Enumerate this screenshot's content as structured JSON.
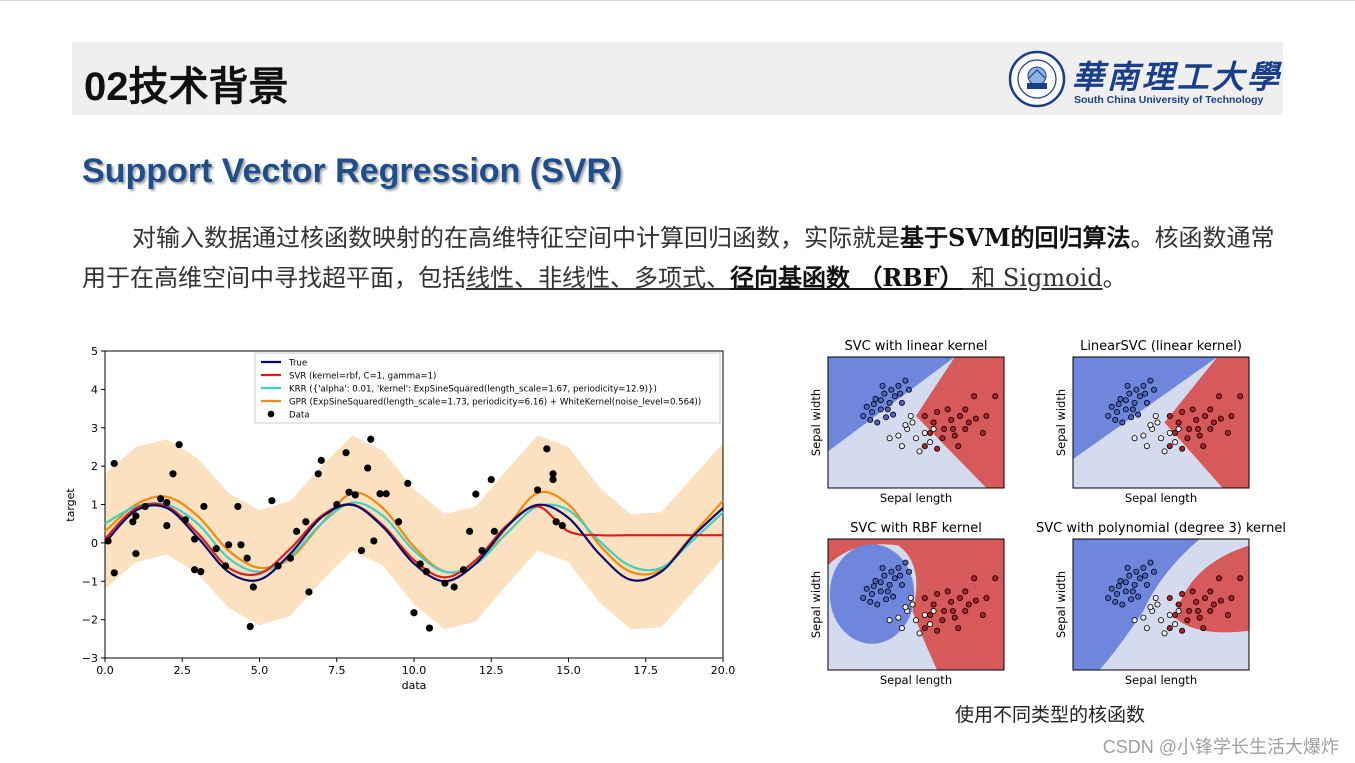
{
  "header": {
    "section_title": "02技术背景",
    "logo_cn": "華南理工大學",
    "logo_en": "South China University of Technology"
  },
  "svr_title": "Support Vector Regression (SVR)",
  "paragraph": {
    "part1": "对输入数据通过核函数映射的在高维特征空间中计算回归函数，实际就是",
    "bold1": "基于SVM的回归算法",
    "part2": "。核函数通常用于在高维空间中寻找超平面，包括",
    "ul1": "线性、非线性、多项式、",
    "ul_bold": "径向基函数 （RBF）",
    "ul2": " 和 Sigmoid",
    "end": "。"
  },
  "caption": "使用不同类型的核函数",
  "watermark": "CSDN @小锋学长生活大爆炸",
  "colors": {
    "accent": "#1f4e8c",
    "band": "#efefef",
    "true_line": "#0b0b6b",
    "svr": "#d62020",
    "krr": "#40d0c0",
    "gpr": "#f08a10",
    "band_fill": "#fbd9b0"
  },
  "chart_data": [
    {
      "type": "line",
      "xlabel": "data",
      "ylabel": "target",
      "xlim": [
        0.0,
        20.0
      ],
      "ylim": [
        -3,
        5
      ],
      "x_ticks": [
        "0.0",
        "2.5",
        "5.0",
        "7.5",
        "10.0",
        "12.5",
        "15.0",
        "17.5",
        "20.0"
      ],
      "y_ticks": [
        "−3",
        "−2",
        "−1",
        "0",
        "1",
        "2",
        "3",
        "4",
        "5"
      ],
      "legend": [
        "True",
        "SVR (kernel=rbf, C=1, gamma=1)",
        "KRR ({'alpha': 0.01, 'kernel': ExpSineSquared(length_scale=1.67, periodicity=12.9)})",
        "GPR (ExpSineSquared(length_scale=1.73, periodicity=6.16) + WhiteKernel(noise_level=0.564))",
        "Data"
      ],
      "legend_position": "top-right",
      "data_points": [
        [
          0.1,
          0.05
        ],
        [
          0.3,
          -0.78
        ],
        [
          0.3,
          2.07
        ],
        [
          0.9,
          0.55
        ],
        [
          1.0,
          0.7
        ],
        [
          1.0,
          -0.28
        ],
        [
          1.3,
          0.95
        ],
        [
          1.8,
          1.15
        ],
        [
          2.0,
          1.05
        ],
        [
          2.0,
          0.45
        ],
        [
          2.2,
          1.8
        ],
        [
          2.4,
          2.56
        ],
        [
          2.6,
          0.6
        ],
        [
          2.9,
          0.1
        ],
        [
          2.9,
          -0.7
        ],
        [
          3.1,
          -0.75
        ],
        [
          3.2,
          0.95
        ],
        [
          3.6,
          -0.15
        ],
        [
          3.9,
          -0.6
        ],
        [
          4.0,
          -0.05
        ],
        [
          4.3,
          0.95
        ],
        [
          4.4,
          -0.05
        ],
        [
          4.6,
          -0.4
        ],
        [
          4.7,
          -2.18
        ],
        [
          4.8,
          -1.15
        ],
        [
          5.4,
          1.1
        ],
        [
          5.6,
          -0.6
        ],
        [
          6.0,
          -0.4
        ],
        [
          6.2,
          0.3
        ],
        [
          6.5,
          0.55
        ],
        [
          6.6,
          -1.28
        ],
        [
          6.9,
          1.8
        ],
        [
          7.0,
          2.15
        ],
        [
          7.5,
          1.0
        ],
        [
          7.8,
          2.35
        ],
        [
          7.9,
          1.32
        ],
        [
          8.1,
          1.25
        ],
        [
          8.3,
          -0.2
        ],
        [
          8.5,
          1.95
        ],
        [
          8.6,
          2.7
        ],
        [
          8.7,
          0.05
        ],
        [
          8.9,
          1.28
        ],
        [
          9.1,
          1.28
        ],
        [
          9.5,
          0.55
        ],
        [
          9.8,
          1.55
        ],
        [
          10.0,
          -1.82
        ],
        [
          10.2,
          -0.55
        ],
        [
          10.4,
          -0.75
        ],
        [
          10.5,
          -2.22
        ],
        [
          11.0,
          -1.05
        ],
        [
          11.3,
          -1.15
        ],
        [
          11.6,
          -0.7
        ],
        [
          11.8,
          0.3
        ],
        [
          12.0,
          1.27
        ],
        [
          12.2,
          -0.2
        ],
        [
          12.5,
          1.65
        ],
        [
          12.6,
          0.3
        ],
        [
          14.0,
          1.38
        ],
        [
          14.3,
          2.45
        ],
        [
          14.5,
          1.8
        ],
        [
          14.5,
          1.65
        ],
        [
          14.6,
          0.55
        ],
        [
          14.8,
          0.45
        ]
      ],
      "true_curve": [
        [
          0,
          0.0
        ],
        [
          1,
          0.84
        ],
        [
          2,
          0.91
        ],
        [
          3,
          0.14
        ],
        [
          4,
          -0.76
        ],
        [
          5,
          -0.96
        ],
        [
          6,
          -0.28
        ],
        [
          7,
          0.66
        ],
        [
          8,
          0.99
        ],
        [
          9,
          0.41
        ],
        [
          10,
          -0.54
        ],
        [
          11,
          -1.0
        ],
        [
          12,
          -0.54
        ],
        [
          13,
          0.42
        ],
        [
          14,
          0.99
        ],
        [
          15,
          0.65
        ],
        [
          16,
          -0.29
        ],
        [
          17,
          -0.96
        ],
        [
          18,
          -0.75
        ],
        [
          19,
          0.15
        ],
        [
          20,
          0.91
        ]
      ],
      "svr_curve": [
        [
          0,
          0.1
        ],
        [
          1,
          0.9
        ],
        [
          2,
          0.95
        ],
        [
          3,
          0.25
        ],
        [
          4,
          -0.65
        ],
        [
          5,
          -0.8
        ],
        [
          6,
          -0.15
        ],
        [
          7,
          0.7
        ],
        [
          8,
          1.0
        ],
        [
          9,
          0.45
        ],
        [
          10,
          -0.45
        ],
        [
          11,
          -0.9
        ],
        [
          12,
          -0.45
        ],
        [
          13,
          0.45
        ],
        [
          14,
          0.95
        ],
        [
          15,
          0.3
        ],
        [
          16,
          0.2
        ],
        [
          17,
          0.2
        ],
        [
          18,
          0.2
        ],
        [
          19,
          0.2
        ],
        [
          20,
          0.2
        ]
      ],
      "krr_curve": [
        [
          0,
          0.5
        ],
        [
          1,
          0.95
        ],
        [
          2,
          1.0
        ],
        [
          3,
          0.5
        ],
        [
          4,
          -0.4
        ],
        [
          5,
          -0.75
        ],
        [
          6,
          -0.35
        ],
        [
          7,
          0.5
        ],
        [
          8,
          1.05
        ],
        [
          9,
          0.7
        ],
        [
          10,
          -0.2
        ],
        [
          11,
          -0.75
        ],
        [
          12,
          -0.55
        ],
        [
          13,
          0.25
        ],
        [
          14,
          0.95
        ],
        [
          15,
          0.85
        ],
        [
          16,
          0.05
        ],
        [
          17,
          -0.6
        ],
        [
          18,
          -0.65
        ],
        [
          19,
          0.05
        ],
        [
          20,
          0.8
        ]
      ],
      "gpr_curve": [
        [
          0,
          0.3
        ],
        [
          1,
          1.0
        ],
        [
          2,
          1.2
        ],
        [
          3,
          0.7
        ],
        [
          4,
          -0.2
        ],
        [
          5,
          -0.65
        ],
        [
          6,
          -0.4
        ],
        [
          7,
          0.5
        ],
        [
          8,
          1.3
        ],
        [
          9,
          0.9
        ],
        [
          10,
          -0.1
        ],
        [
          11,
          -0.75
        ],
        [
          12,
          -0.55
        ],
        [
          13,
          0.4
        ],
        [
          14,
          1.3
        ],
        [
          15,
          1.0
        ],
        [
          16,
          -0.05
        ],
        [
          17,
          -0.75
        ],
        [
          18,
          -0.7
        ],
        [
          19,
          0.2
        ],
        [
          20,
          1.1
        ]
      ],
      "band_halfwidth": 1.5
    },
    {
      "type": "scatter",
      "panels": [
        {
          "title": "SVC with linear kernel",
          "xlabel": "Sepal length",
          "ylabel": "Sepal width"
        },
        {
          "title": "LinearSVC (linear kernel)",
          "xlabel": "Sepal length",
          "ylabel": "Sepal width"
        },
        {
          "title": "SVC with RBF kernel",
          "xlabel": "Sepal length",
          "ylabel": "Sepal width"
        },
        {
          "title": "SVC with polynomial (degree 3) kernel",
          "xlabel": "Sepal length",
          "ylabel": "Sepal width"
        }
      ]
    }
  ]
}
